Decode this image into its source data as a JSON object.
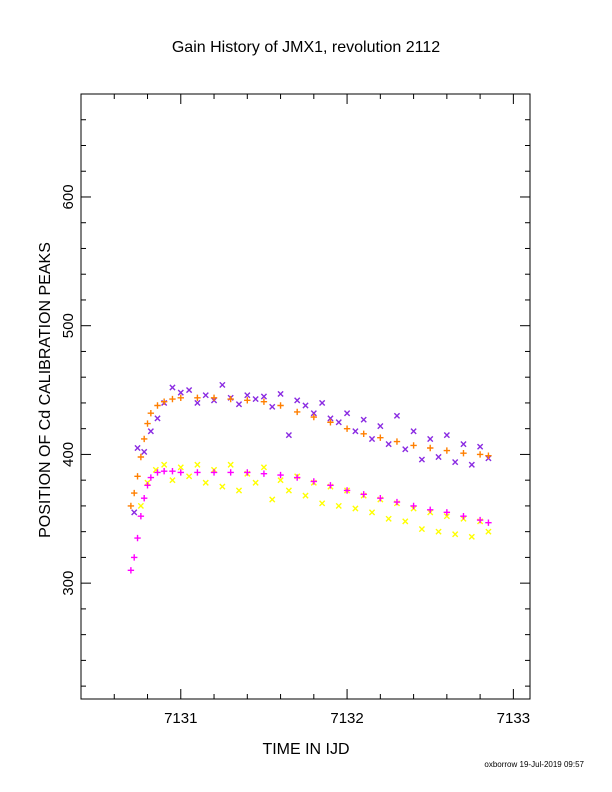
{
  "chart_data": {
    "type": "scatter",
    "title": "Gain History of JMX1, revolution 2112",
    "xlabel": "TIME IN IJD",
    "ylabel": "POSITION OF Cd CALIBRATION PEAKS",
    "xlim": [
      7130.4,
      7133.1
    ],
    "ylim": [
      210,
      680
    ],
    "x_ticks": [
      "7131",
      "7132",
      "7133"
    ],
    "y_ticks": [
      "300",
      "400",
      "500",
      "600"
    ],
    "grid": false,
    "legend": "none",
    "series": [
      {
        "marker": "x",
        "color": "#8a2be2",
        "points": [
          [
            7130.72,
            355
          ],
          [
            7130.74,
            405
          ],
          [
            7130.78,
            402
          ],
          [
            7130.82,
            418
          ],
          [
            7130.86,
            428
          ],
          [
            7130.9,
            440
          ],
          [
            7130.95,
            452
          ],
          [
            7131.0,
            448
          ],
          [
            7131.05,
            450
          ],
          [
            7131.1,
            440
          ],
          [
            7131.15,
            446
          ],
          [
            7131.2,
            442
          ],
          [
            7131.25,
            454
          ],
          [
            7131.3,
            444
          ],
          [
            7131.35,
            439
          ],
          [
            7131.4,
            446
          ],
          [
            7131.45,
            443
          ],
          [
            7131.5,
            445
          ],
          [
            7131.55,
            437
          ],
          [
            7131.6,
            447
          ],
          [
            7131.65,
            415
          ],
          [
            7131.7,
            442
          ],
          [
            7131.75,
            438
          ],
          [
            7131.8,
            432
          ],
          [
            7131.85,
            440
          ],
          [
            7131.9,
            428
          ],
          [
            7131.95,
            425
          ],
          [
            7132.0,
            432
          ],
          [
            7132.05,
            418
          ],
          [
            7132.1,
            427
          ],
          [
            7132.15,
            412
          ],
          [
            7132.2,
            422
          ],
          [
            7132.25,
            408
          ],
          [
            7132.3,
            430
          ],
          [
            7132.35,
            404
          ],
          [
            7132.4,
            418
          ],
          [
            7132.45,
            396
          ],
          [
            7132.5,
            412
          ],
          [
            7132.55,
            398
          ],
          [
            7132.6,
            415
          ],
          [
            7132.65,
            394
          ],
          [
            7132.7,
            408
          ],
          [
            7132.75,
            392
          ],
          [
            7132.8,
            406
          ],
          [
            7132.85,
            397
          ]
        ]
      },
      {
        "marker": "plus",
        "color": "#ff7f00",
        "points": [
          [
            7130.7,
            360
          ],
          [
            7130.72,
            370
          ],
          [
            7130.74,
            383
          ],
          [
            7130.76,
            398
          ],
          [
            7130.78,
            412
          ],
          [
            7130.8,
            424
          ],
          [
            7130.82,
            432
          ],
          [
            7130.86,
            438
          ],
          [
            7130.9,
            441
          ],
          [
            7130.95,
            443
          ],
          [
            7131.0,
            444
          ],
          [
            7131.1,
            444
          ],
          [
            7131.2,
            444
          ],
          [
            7131.3,
            443
          ],
          [
            7131.4,
            442
          ],
          [
            7131.5,
            441
          ],
          [
            7131.6,
            438
          ],
          [
            7131.7,
            433
          ],
          [
            7131.8,
            429
          ],
          [
            7131.9,
            425
          ],
          [
            7132.0,
            420
          ],
          [
            7132.1,
            416
          ],
          [
            7132.2,
            413
          ],
          [
            7132.3,
            410
          ],
          [
            7132.4,
            407
          ],
          [
            7132.5,
            405
          ],
          [
            7132.6,
            403
          ],
          [
            7132.7,
            401
          ],
          [
            7132.8,
            400
          ],
          [
            7132.85,
            399
          ]
        ]
      },
      {
        "marker": "x",
        "color": "#ffff00",
        "points": [
          [
            7130.76,
            360
          ],
          [
            7130.8,
            378
          ],
          [
            7130.85,
            388
          ],
          [
            7130.9,
            392
          ],
          [
            7130.95,
            380
          ],
          [
            7131.0,
            390
          ],
          [
            7131.05,
            383
          ],
          [
            7131.1,
            392
          ],
          [
            7131.15,
            378
          ],
          [
            7131.2,
            388
          ],
          [
            7131.25,
            375
          ],
          [
            7131.3,
            392
          ],
          [
            7131.35,
            372
          ],
          [
            7131.4,
            385
          ],
          [
            7131.45,
            378
          ],
          [
            7131.5,
            390
          ],
          [
            7131.55,
            365
          ],
          [
            7131.6,
            380
          ],
          [
            7131.65,
            372
          ],
          [
            7131.7,
            383
          ],
          [
            7131.75,
            368
          ],
          [
            7131.8,
            378
          ],
          [
            7131.85,
            362
          ],
          [
            7131.9,
            375
          ],
          [
            7131.95,
            360
          ],
          [
            7132.0,
            372
          ],
          [
            7132.05,
            358
          ],
          [
            7132.1,
            368
          ],
          [
            7132.15,
            355
          ],
          [
            7132.2,
            365
          ],
          [
            7132.25,
            350
          ],
          [
            7132.3,
            362
          ],
          [
            7132.35,
            348
          ],
          [
            7132.4,
            358
          ],
          [
            7132.45,
            342
          ],
          [
            7132.5,
            355
          ],
          [
            7132.55,
            340
          ],
          [
            7132.6,
            352
          ],
          [
            7132.65,
            338
          ],
          [
            7132.7,
            350
          ],
          [
            7132.75,
            336
          ],
          [
            7132.8,
            348
          ],
          [
            7132.85,
            340
          ]
        ]
      },
      {
        "marker": "plus",
        "color": "#ff00ff",
        "points": [
          [
            7130.7,
            310
          ],
          [
            7130.72,
            320
          ],
          [
            7130.74,
            335
          ],
          [
            7130.76,
            352
          ],
          [
            7130.78,
            366
          ],
          [
            7130.8,
            376
          ],
          [
            7130.82,
            382
          ],
          [
            7130.86,
            386
          ],
          [
            7130.9,
            387
          ],
          [
            7130.95,
            387
          ],
          [
            7131.0,
            386
          ],
          [
            7131.1,
            386
          ],
          [
            7131.2,
            386
          ],
          [
            7131.3,
            386
          ],
          [
            7131.4,
            386
          ],
          [
            7131.5,
            385
          ],
          [
            7131.6,
            384
          ],
          [
            7131.7,
            382
          ],
          [
            7131.8,
            379
          ],
          [
            7131.9,
            376
          ],
          [
            7132.0,
            372
          ],
          [
            7132.1,
            369
          ],
          [
            7132.2,
            366
          ],
          [
            7132.3,
            363
          ],
          [
            7132.4,
            360
          ],
          [
            7132.5,
            357
          ],
          [
            7132.6,
            355
          ],
          [
            7132.7,
            352
          ],
          [
            7132.8,
            349
          ],
          [
            7132.85,
            347
          ]
        ]
      }
    ]
  },
  "footer": {
    "credit": "oxborrow 19-Jul-2019 09:57"
  }
}
